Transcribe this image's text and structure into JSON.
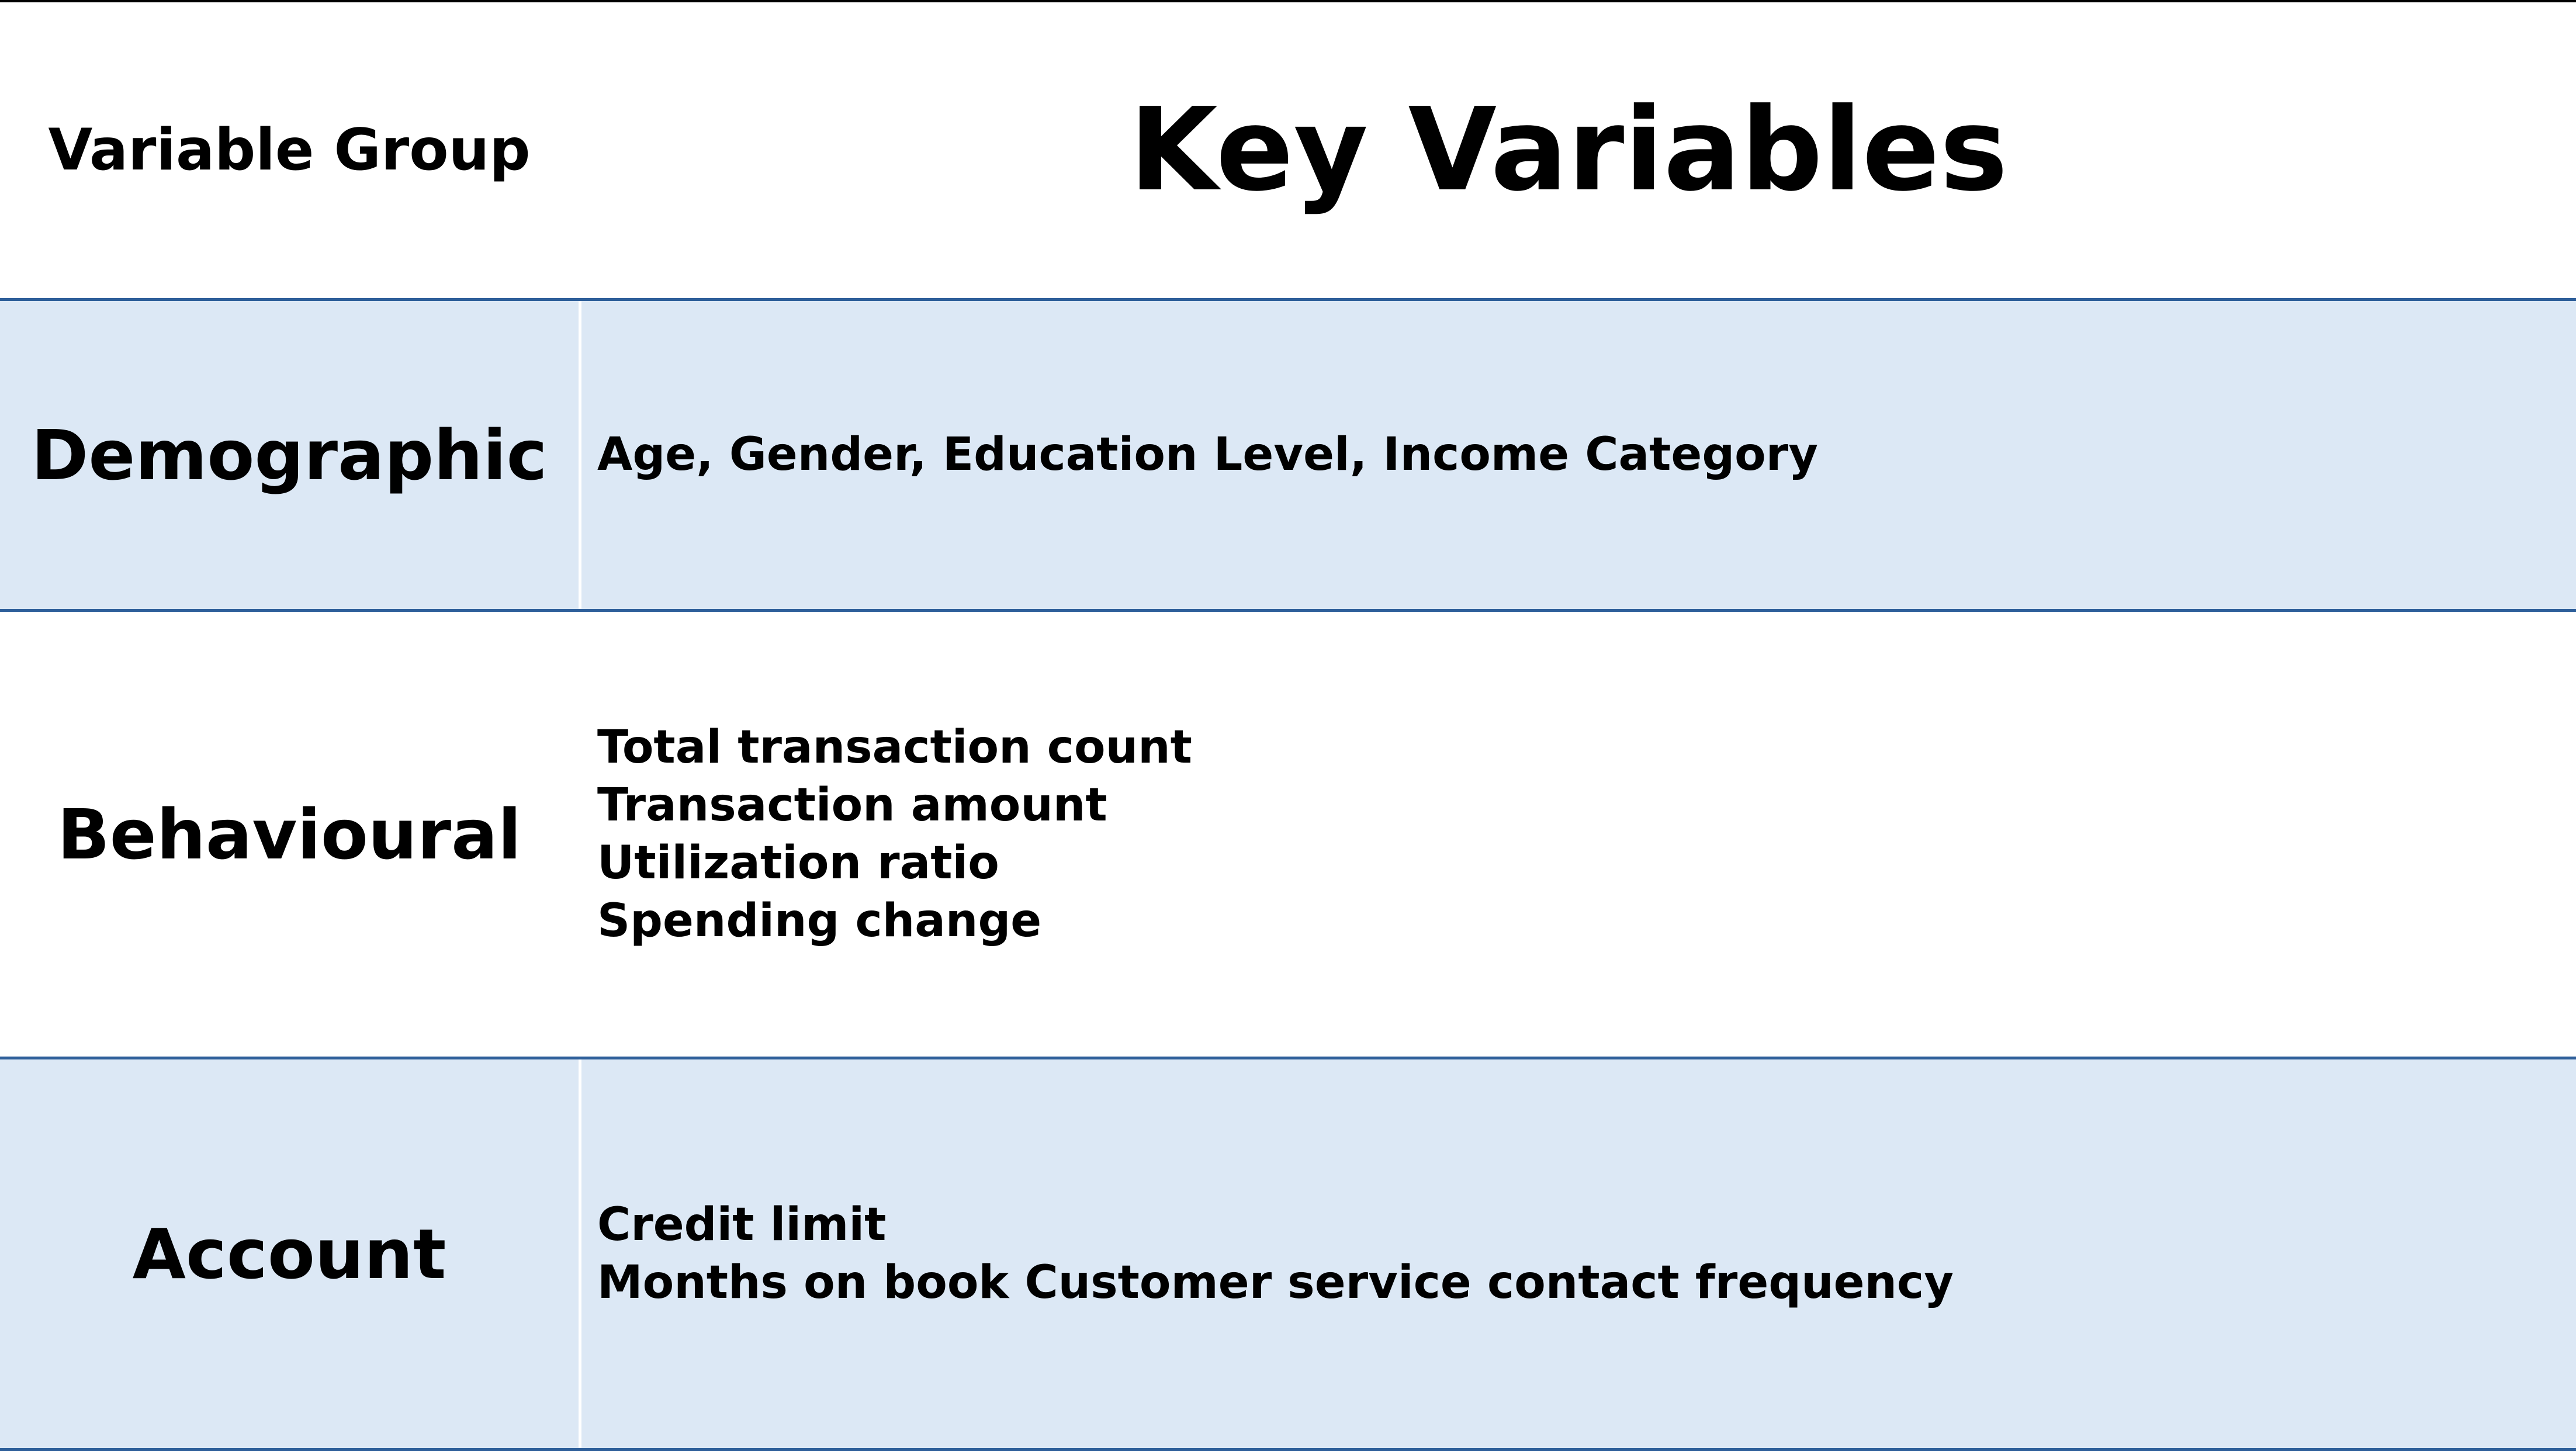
{
  "header": {
    "group_label": "Variable Group",
    "key_label": "Key Variables"
  },
  "rows": [
    {
      "group": "Demographic",
      "lines": [
        "Age, Gender, Education Level, Income Category"
      ]
    },
    {
      "group": "Behavioural",
      "lines": [
        "Total transaction count",
        "Transaction amount",
        "Utilization ratio",
        "Spending change"
      ]
    },
    {
      "group": "Account",
      "lines": [
        "Credit limit",
        "Months on book Customer service  contact  frequency"
      ]
    }
  ],
  "colors": {
    "row_shade": "#dce8f5",
    "rule": "#2e5f9a",
    "text": "#000000"
  }
}
